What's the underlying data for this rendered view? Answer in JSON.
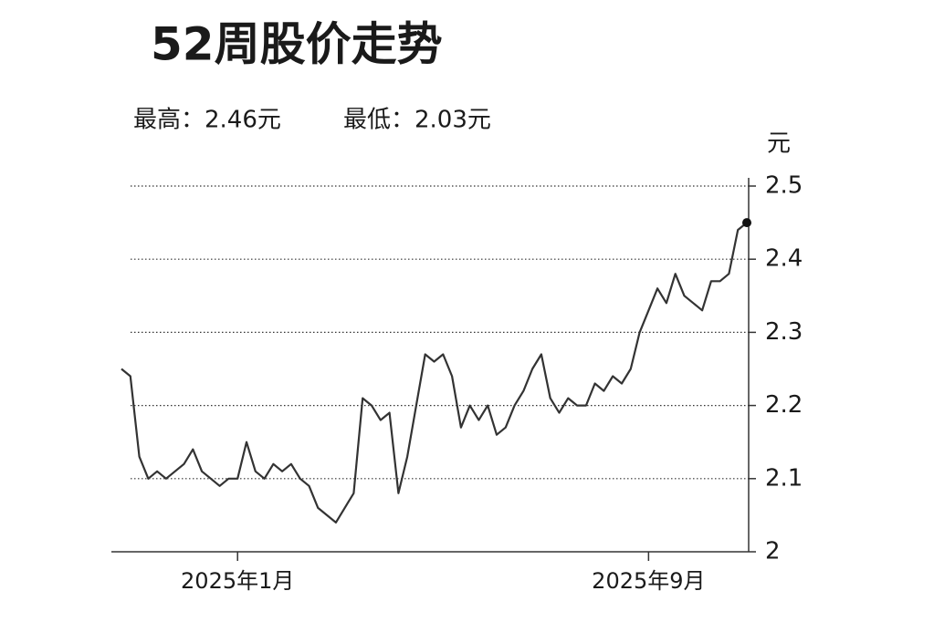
{
  "chart_data": {
    "type": "line",
    "title": "52周股价走势",
    "high_label": "最高：2.46元",
    "low_label": "最低：2.03元",
    "y_unit": "元",
    "categories": [
      null,
      null,
      null,
      null,
      null,
      null,
      null,
      null,
      null,
      null,
      null,
      null,
      null,
      "2025年1月",
      null,
      null,
      null,
      null,
      null,
      null,
      null,
      null,
      null,
      null,
      null,
      null,
      null,
      null,
      null,
      null,
      null,
      null,
      null,
      null,
      null,
      null,
      null,
      null,
      null,
      null,
      null,
      null,
      null,
      null,
      null,
      null,
      null,
      null,
      null,
      null,
      null,
      null,
      null,
      null,
      null,
      null,
      null,
      null,
      null,
      "2025年9月",
      null,
      null,
      null,
      null,
      null,
      null,
      null,
      null,
      null,
      null,
      null
    ],
    "values": [
      2.25,
      2.24,
      2.13,
      2.1,
      2.11,
      2.1,
      2.11,
      2.12,
      2.14,
      2.11,
      2.1,
      2.09,
      2.1,
      2.1,
      2.15,
      2.11,
      2.1,
      2.12,
      2.11,
      2.12,
      2.1,
      2.09,
      2.06,
      2.05,
      2.04,
      2.06,
      2.08,
      2.21,
      2.2,
      2.18,
      2.19,
      2.08,
      2.13,
      2.2,
      2.27,
      2.26,
      2.27,
      2.24,
      2.17,
      2.2,
      2.18,
      2.2,
      2.16,
      2.17,
      2.2,
      2.22,
      2.25,
      2.27,
      2.21,
      2.19,
      2.21,
      2.2,
      2.2,
      2.23,
      2.22,
      2.24,
      2.23,
      2.25,
      2.3,
      2.33,
      2.36,
      2.34,
      2.38,
      2.35,
      2.34,
      2.33,
      2.37,
      2.37,
      2.38,
      2.44,
      2.45
    ],
    "color": "#333333",
    "ylim": [
      2.0,
      2.5
    ],
    "yticks": [
      2.0,
      2.1,
      2.2,
      2.3,
      2.4,
      2.5
    ],
    "grid": true
  }
}
